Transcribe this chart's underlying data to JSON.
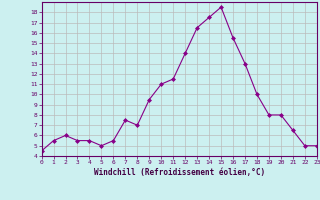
{
  "x": [
    0,
    1,
    2,
    3,
    4,
    5,
    6,
    7,
    8,
    9,
    10,
    11,
    12,
    13,
    14,
    15,
    16,
    17,
    18,
    19,
    20,
    21,
    22,
    23
  ],
  "y": [
    4.5,
    5.5,
    6.0,
    5.5,
    5.5,
    5.0,
    5.5,
    7.5,
    7.0,
    9.5,
    11.0,
    11.5,
    14.0,
    16.5,
    17.5,
    18.5,
    15.5,
    13.0,
    10.0,
    8.0,
    8.0,
    6.5,
    5.0,
    5.0
  ],
  "xlabel": "Windchill (Refroidissement éolien,°C)",
  "xticks": [
    0,
    1,
    2,
    3,
    4,
    5,
    6,
    7,
    8,
    9,
    10,
    11,
    12,
    13,
    14,
    15,
    16,
    17,
    18,
    19,
    20,
    21,
    22,
    23
  ],
  "yticks": [
    4,
    5,
    6,
    7,
    8,
    9,
    10,
    11,
    12,
    13,
    14,
    15,
    16,
    17,
    18
  ],
  "ylim": [
    4,
    19
  ],
  "xlim": [
    0,
    23
  ],
  "line_color": "#880088",
  "marker": "D",
  "bg_color": "#ccf0f0",
  "grid_color": "#bbbbbb",
  "spine_color": "#660066",
  "label_color": "#660066",
  "xlabel_color": "#440044"
}
